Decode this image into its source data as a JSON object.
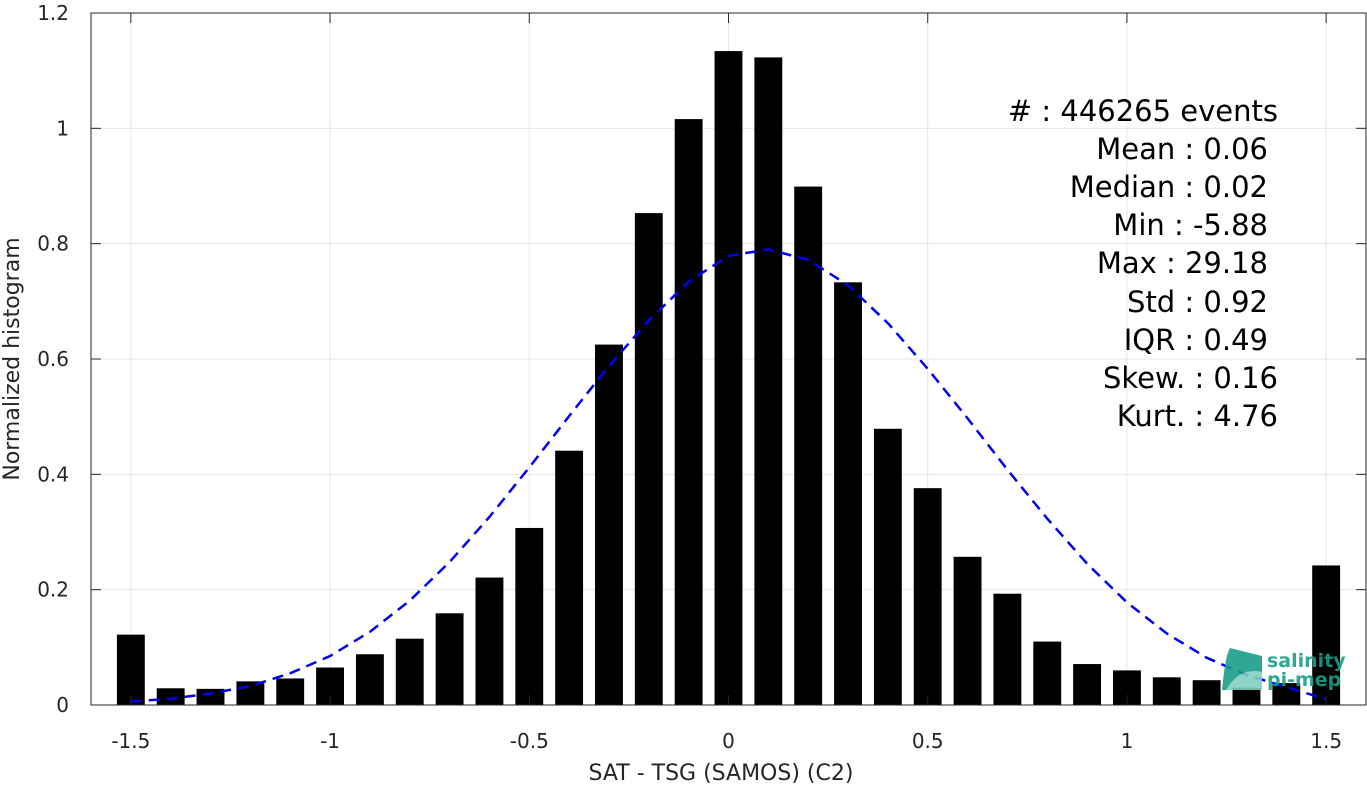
{
  "chart_data": {
    "type": "bar",
    "xlabel": "SAT - TSG (SAMOS) (C2)",
    "ylabel": "Normalized histogram",
    "xlim": [
      -1.6,
      1.6
    ],
    "ylim": [
      0,
      1.2
    ],
    "xticks": [
      -1.5,
      -1,
      -0.5,
      0,
      0.5,
      1,
      1.5
    ],
    "xtick_labels": [
      "-1.5",
      "-1",
      "-0.5",
      "0",
      "0.5",
      "1",
      "1.5"
    ],
    "yticks": [
      0,
      0.2,
      0.4,
      0.6,
      0.8,
      1,
      1.2
    ],
    "ytick_labels": [
      "0",
      "0.2",
      "0.4",
      "0.6",
      "0.8",
      "1",
      "1.2"
    ],
    "grid": true,
    "bar_color": "#000000",
    "bars": {
      "x": [
        -1.5,
        -1.4,
        -1.3,
        -1.2,
        -1.1,
        -1.0,
        -0.9,
        -0.8,
        -0.7,
        -0.6,
        -0.5,
        -0.4,
        -0.3,
        -0.2,
        -0.1,
        0.0,
        0.1,
        0.2,
        0.3,
        0.4,
        0.5,
        0.6,
        0.7,
        0.8,
        0.9,
        1.0,
        1.1,
        1.2,
        1.3,
        1.4,
        1.5
      ],
      "values": [
        0.122,
        0.029,
        0.028,
        0.041,
        0.046,
        0.065,
        0.088,
        0.115,
        0.159,
        0.221,
        0.307,
        0.441,
        0.625,
        0.853,
        1.016,
        1.134,
        1.123,
        0.899,
        0.733,
        0.479,
        0.376,
        0.257,
        0.193,
        0.11,
        0.071,
        0.06,
        0.048,
        0.043,
        0.03,
        0.038,
        0.242
      ]
    },
    "fit_curve": {
      "style": "dashed",
      "color": "#0000ee",
      "x": [
        -1.5,
        -1.4,
        -1.3,
        -1.2,
        -1.1,
        -1.0,
        -0.9,
        -0.8,
        -0.7,
        -0.6,
        -0.5,
        -0.4,
        -0.3,
        -0.2,
        -0.1,
        0.0,
        0.1,
        0.2,
        0.3,
        0.4,
        0.5,
        0.6,
        0.7,
        0.8,
        0.9,
        1.0,
        1.1,
        1.2,
        1.3,
        1.4,
        1.5
      ],
      "y": [
        0.006,
        0.011,
        0.02,
        0.033,
        0.055,
        0.085,
        0.127,
        0.181,
        0.248,
        0.326,
        0.412,
        0.501,
        0.588,
        0.667,
        0.734,
        0.779,
        0.79,
        0.772,
        0.728,
        0.662,
        0.583,
        0.497,
        0.408,
        0.323,
        0.245,
        0.178,
        0.124,
        0.082,
        0.052,
        0.031,
        0.01
      ]
    },
    "annotations": [
      "#  : 446265 events",
      "Mean : 0.06",
      "Median : 0.02",
      "Min : -5.88",
      "Max : 29.18",
      "Std : 0.92",
      "IQR : 0.49",
      "Skew. : 0.16",
      "Kurt. : 4.76"
    ]
  },
  "logo": {
    "line1": "salinity",
    "line2": "pi-mep",
    "color": "#1a9e8a"
  }
}
